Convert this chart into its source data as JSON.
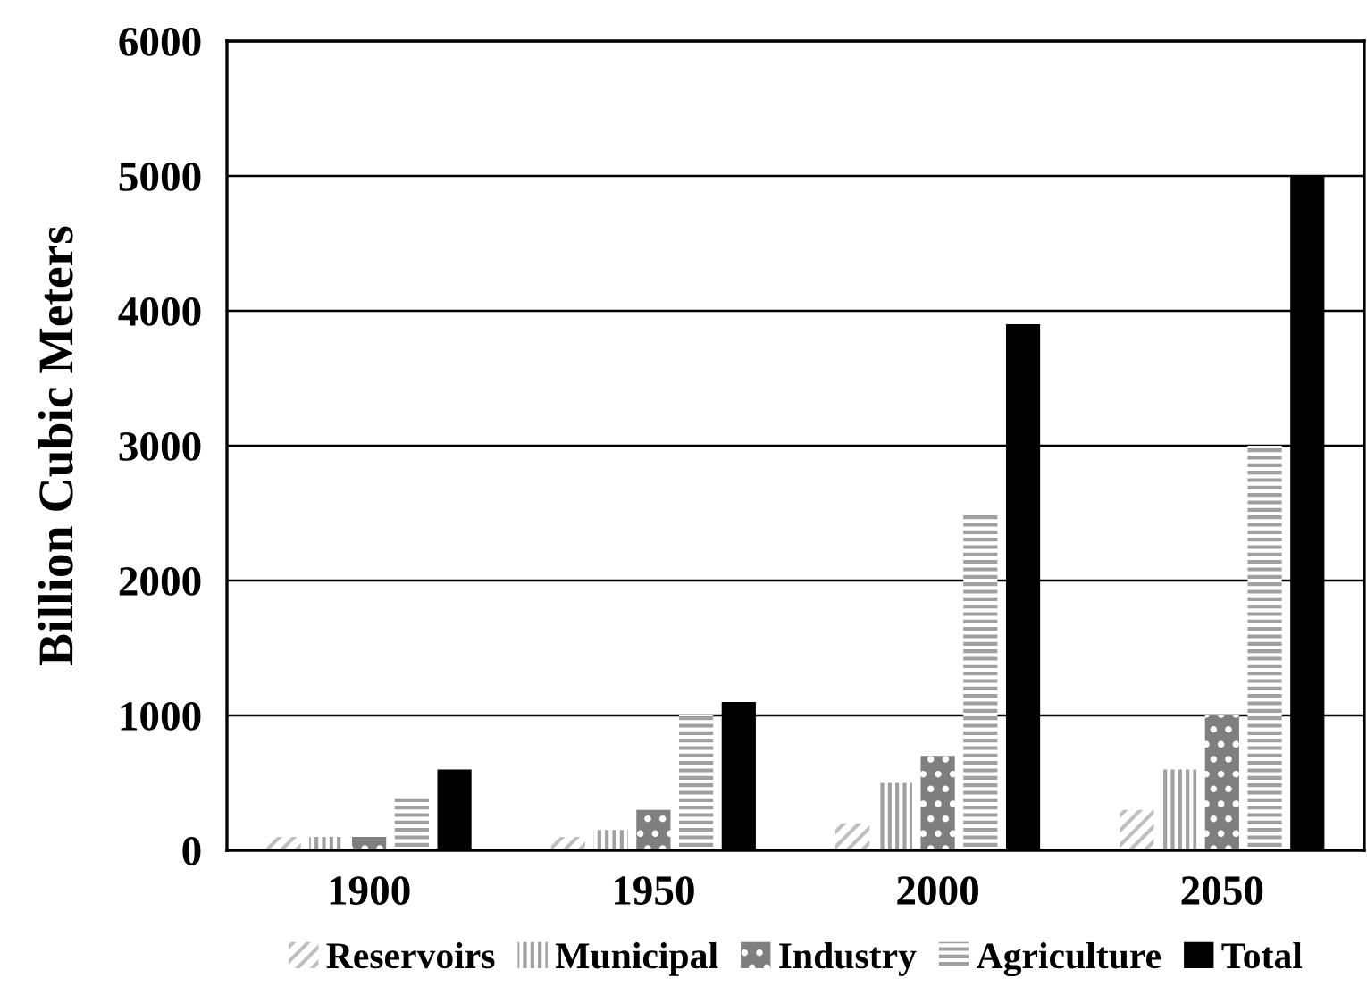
{
  "chart_data": {
    "type": "bar",
    "ylabel": "Billion Cubic Meters",
    "categories": [
      "1900",
      "1950",
      "2000",
      "2050"
    ],
    "series": [
      {
        "name": "Reservoirs",
        "color": "#bfbfbf",
        "values": [
          100,
          100,
          200,
          300
        ]
      },
      {
        "name": "Municipal",
        "color": "#a0a0a0",
        "values": [
          100,
          150,
          500,
          600
        ]
      },
      {
        "name": "Industry",
        "color": "#7f7f7f",
        "values": [
          100,
          300,
          700,
          1000
        ]
      },
      {
        "name": "Agriculture",
        "color": "#a0a0a0",
        "values": [
          400,
          1000,
          2500,
          3000
        ]
      },
      {
        "name": "Total",
        "color": "#000000",
        "values": [
          600,
          1100,
          3900,
          5000
        ]
      }
    ],
    "ylim": [
      0,
      6000
    ],
    "yticks": [
      0,
      1000,
      2000,
      3000,
      4000,
      5000,
      6000
    ],
    "grid": "y",
    "legend": "bottom"
  }
}
